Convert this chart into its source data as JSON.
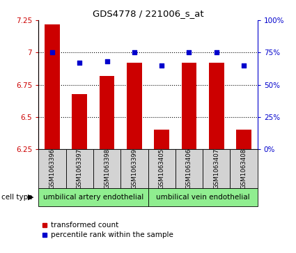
{
  "title": "GDS4778 / 221006_s_at",
  "samples": [
    "GSM1063396",
    "GSM1063397",
    "GSM1063398",
    "GSM1063399",
    "GSM1063405",
    "GSM1063406",
    "GSM1063407",
    "GSM1063408"
  ],
  "transformed_count": [
    7.22,
    6.68,
    6.82,
    6.92,
    6.4,
    6.92,
    6.92,
    6.4
  ],
  "percentile_rank": [
    75,
    67,
    68,
    75,
    65,
    75,
    75,
    65
  ],
  "ylim_left": [
    6.25,
    7.25
  ],
  "ylim_right": [
    0,
    100
  ],
  "yticks_left": [
    6.25,
    6.5,
    6.75,
    7.0,
    7.25
  ],
  "yticks_right": [
    0,
    25,
    50,
    75,
    100
  ],
  "ytick_labels_left": [
    "6.25",
    "6.5",
    "6.75",
    "7",
    "7.25"
  ],
  "ytick_labels_right": [
    "0%",
    "25%",
    "50%",
    "75%",
    "100%"
  ],
  "cell_type_labels": [
    "umbilical artery endothelial",
    "umbilical vein endothelial"
  ],
  "cell_type_groups": [
    4,
    4
  ],
  "bar_color": "#cc0000",
  "dot_color": "#0000cc",
  "bar_width": 0.55,
  "cell_type_bg": "#90ee90",
  "sample_bg": "#d3d3d3",
  "legend_red_label": "transformed count",
  "legend_blue_label": "percentile rank within the sample"
}
